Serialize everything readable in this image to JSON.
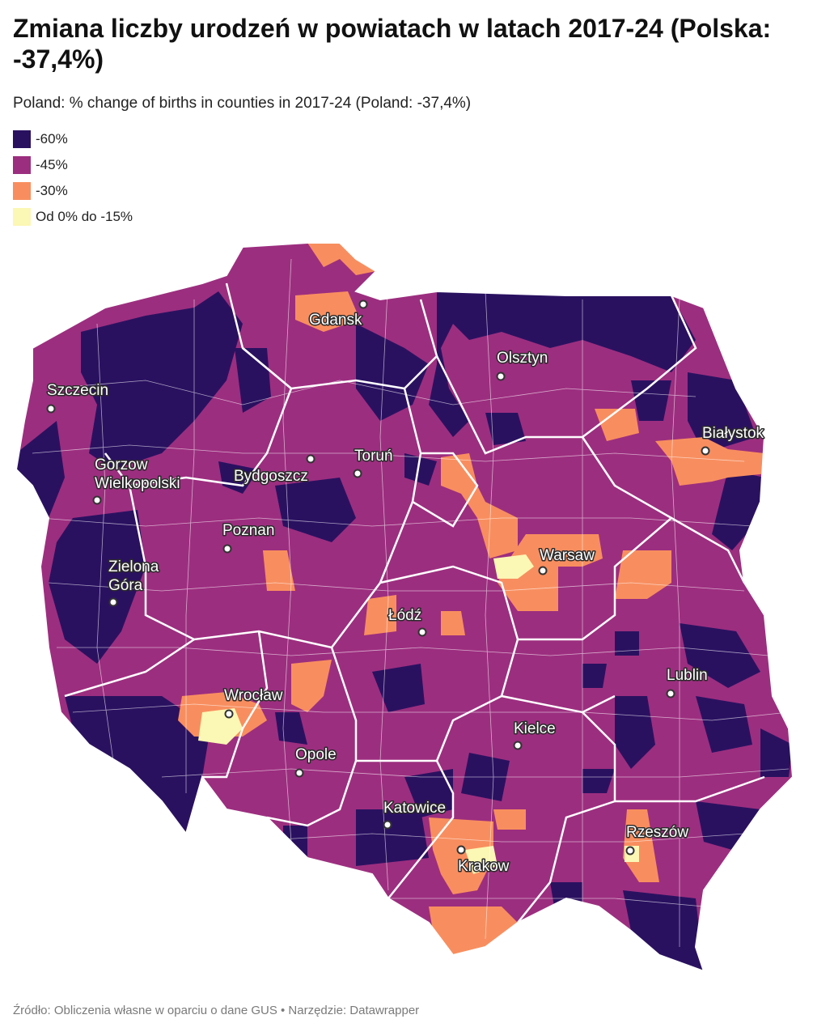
{
  "title": "Zmiana liczby urodzeń w powiatach w latach 2017-24 (Polska: -37,4%)",
  "subtitle": "Poland: % change of births in counties in 2017-24 (Poland: -37,4%)",
  "legend": [
    {
      "label": "-60%",
      "color": "#2a1160"
    },
    {
      "label": "-45%",
      "color": "#9c2e7f"
    },
    {
      "label": "-30%",
      "color": "#f88e5f"
    },
    {
      "label": "Od 0% do -15%",
      "color": "#fbf7b4"
    }
  ],
  "cities": [
    {
      "name": "Gdansk"
    },
    {
      "name": "Olsztyn"
    },
    {
      "name": "Szczecin"
    },
    {
      "name": "Białystok"
    },
    {
      "name": "Gorzow"
    },
    {
      "name": "Wielkopolski"
    },
    {
      "name": "Toruń"
    },
    {
      "name": "Bydgoszcz"
    },
    {
      "name": "Poznan"
    },
    {
      "name": "Warsaw"
    },
    {
      "name": "Zielona"
    },
    {
      "name": "Góra"
    },
    {
      "name": "Łódź"
    },
    {
      "name": "Lublin"
    },
    {
      "name": "Wrocław"
    },
    {
      "name": "Kielce"
    },
    {
      "name": "Opole"
    },
    {
      "name": "Katowice"
    },
    {
      "name": "Rzeszów"
    },
    {
      "name": "Krakow"
    }
  ],
  "footer": "Źródło: Obliczenia własne w oparciu o dane GUS • Narzędzie: Datawrapper"
}
